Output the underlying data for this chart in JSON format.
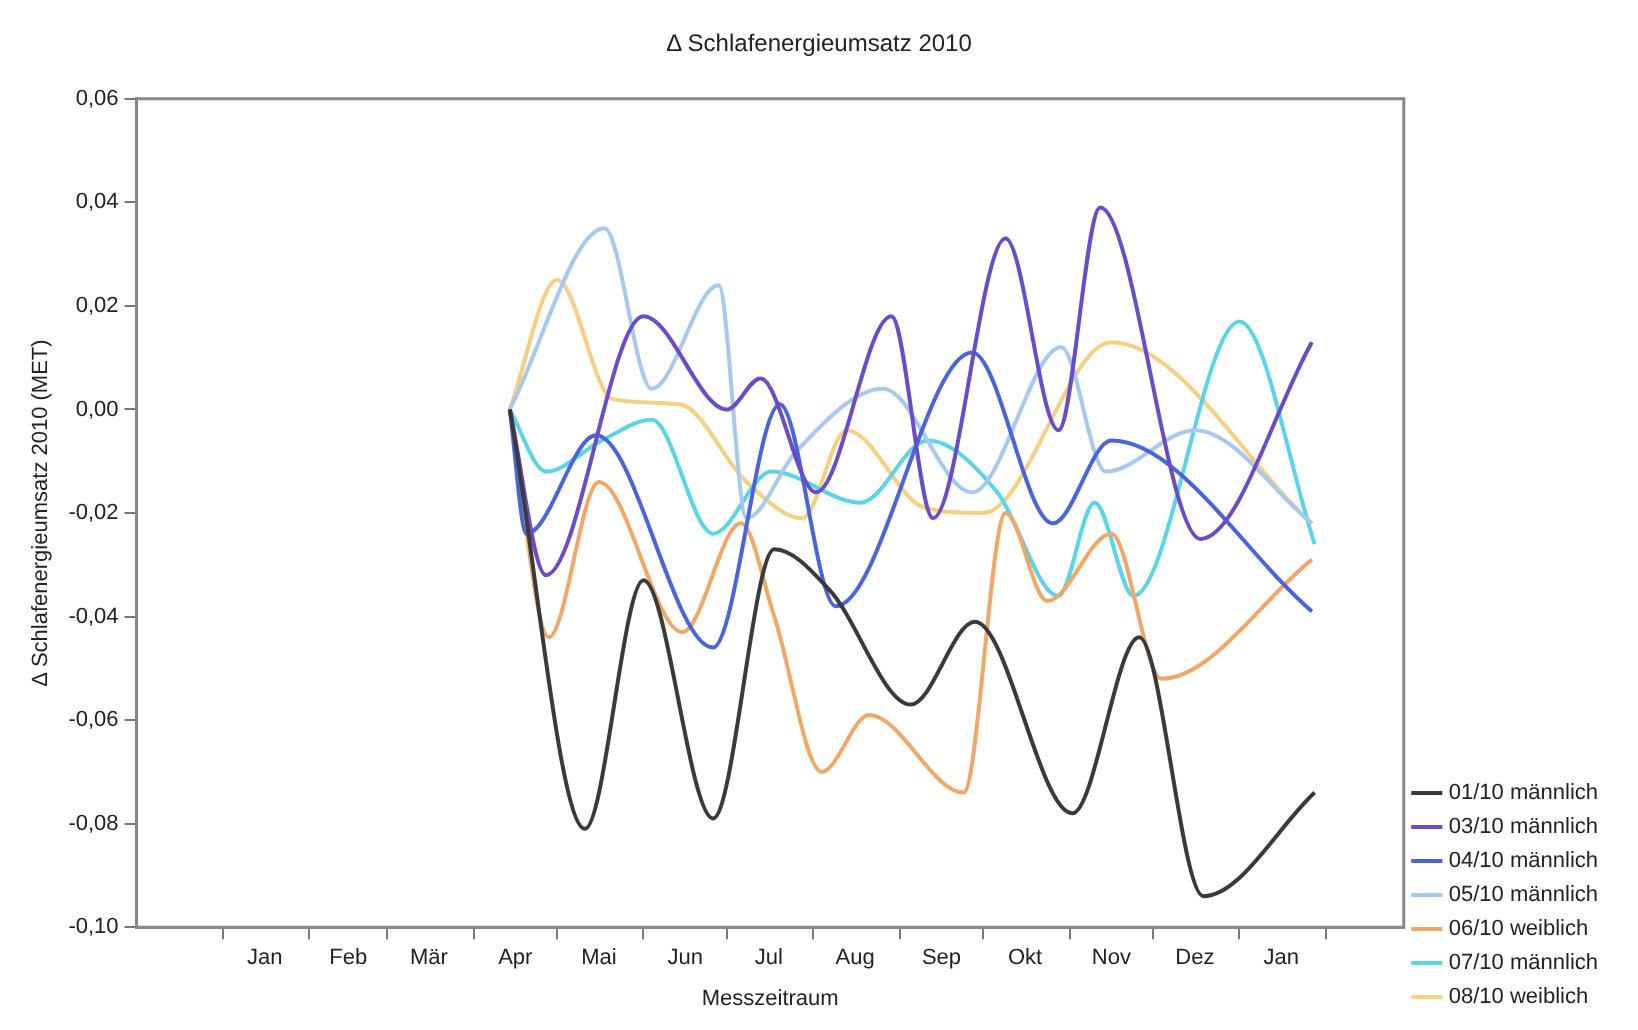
{
  "chart_data": {
    "type": "line",
    "title": "Δ Schlafenergieumsatz 2010",
    "xlabel": "Messzeitraum",
    "ylabel": "Δ Schlafenergieumsatz 2010 (MET)",
    "xlim": [
      "2009-12-01",
      "2011-03-01"
    ],
    "xticks": [
      {
        "value": "2010-01-01",
        "label": null
      },
      {
        "value": "2010-01-16",
        "label": "Jan"
      },
      {
        "value": "2010-02-01",
        "label": null
      },
      {
        "value": "2010-02-15",
        "label": "Feb"
      },
      {
        "value": "2010-03-01",
        "label": null
      },
      {
        "value": "2010-03-16",
        "label": "Mär"
      },
      {
        "value": "2010-04-01",
        "label": null
      },
      {
        "value": "2010-04-16",
        "label": "Apr"
      },
      {
        "value": "2010-05-01",
        "label": null
      },
      {
        "value": "2010-05-16",
        "label": "Mai"
      },
      {
        "value": "2010-06-01",
        "label": null
      },
      {
        "value": "2010-06-16",
        "label": "Jun"
      },
      {
        "value": "2010-07-01",
        "label": null
      },
      {
        "value": "2010-07-16",
        "label": "Jul"
      },
      {
        "value": "2010-08-01",
        "label": null
      },
      {
        "value": "2010-08-16",
        "label": "Aug"
      },
      {
        "value": "2010-09-01",
        "label": null
      },
      {
        "value": "2010-09-16",
        "label": "Sep"
      },
      {
        "value": "2010-10-01",
        "label": null
      },
      {
        "value": "2010-10-16",
        "label": "Okt"
      },
      {
        "value": "2010-11-01",
        "label": null
      },
      {
        "value": "2010-11-16",
        "label": "Nov"
      },
      {
        "value": "2010-12-01",
        "label": null
      },
      {
        "value": "2010-12-16",
        "label": "Dez"
      },
      {
        "value": "2011-01-01",
        "label": null
      },
      {
        "value": "2011-01-16",
        "label": "Jan"
      },
      {
        "value": "2011-02-01",
        "label": null
      }
    ],
    "ylim": [
      -0.1,
      0.06
    ],
    "yticks": [
      {
        "value": -0.1,
        "label": "-0,10"
      },
      {
        "value": -0.08,
        "label": "-0,08"
      },
      {
        "value": -0.06,
        "label": "-0,06"
      },
      {
        "value": -0.04,
        "label": "-0,04"
      },
      {
        "value": -0.02,
        "label": "-0,02"
      },
      {
        "value": 0,
        "label": "0,00"
      },
      {
        "value": 0.02,
        "label": "0,02"
      },
      {
        "value": 0.04,
        "label": "0,04"
      },
      {
        "value": 0.06,
        "label": "0,06"
      }
    ],
    "legend": "bottom right",
    "marker": "none",
    "line_style": "solid",
    "series": [
      {
        "name": "01/10 männlich",
        "color": "#3a3a3a",
        "x": [
          "2010-04-14",
          "2010-05-11",
          "2010-06-01",
          "2010-06-26",
          "2010-07-18",
          "2010-08-07",
          "2010-09-05",
          "2010-09-28",
          "2010-11-02",
          "2010-11-26",
          "2010-12-19",
          "2011-01-28"
        ],
        "values": [
          0,
          -0.081,
          -0.033,
          -0.079,
          -0.027,
          -0.035,
          -0.057,
          -0.041,
          -0.078,
          -0.044,
          -0.094,
          -0.074
        ]
      },
      {
        "name": "03/10 männlich",
        "color": "#6a4cc8",
        "x": [
          "2010-04-14",
          "2010-04-27",
          "2010-06-01",
          "2010-07-01",
          "2010-07-13",
          "2010-08-02",
          "2010-08-29",
          "2010-09-13",
          "2010-10-09",
          "2010-10-28",
          "2010-11-12",
          "2010-12-18",
          "2011-01-27"
        ],
        "values": [
          0,
          -0.032,
          0.018,
          0,
          0.006,
          -0.016,
          0.018,
          -0.021,
          0.033,
          -0.004,
          0.039,
          -0.025,
          0.013
        ]
      },
      {
        "name": "04/10 männlich",
        "color": "#4a64dc",
        "x": [
          "2010-04-14",
          "2010-04-20",
          "2010-05-15",
          "2010-06-26",
          "2010-07-20",
          "2010-08-09",
          "2010-09-27",
          "2010-10-26",
          "2010-11-16",
          "2011-01-27"
        ],
        "values": [
          0,
          -0.024,
          -0.005,
          -0.046,
          0.001,
          -0.038,
          0.011,
          -0.022,
          -0.006,
          -0.039
        ]
      },
      {
        "name": "05/10 männlich",
        "color": "#a8c8f0",
        "x": [
          "2010-04-14",
          "2010-05-18",
          "2010-06-04",
          "2010-06-28",
          "2010-07-08",
          "2010-07-26",
          "2010-08-26",
          "2010-09-27",
          "2010-10-29",
          "2010-11-14",
          "2010-12-16",
          "2011-01-27"
        ],
        "values": [
          0,
          0.035,
          0.004,
          0.024,
          -0.021,
          -0.008,
          0.004,
          -0.016,
          0.012,
          -0.012,
          -0.004,
          -0.022
        ]
      },
      {
        "name": "06/10 weiblich",
        "color": "#f0a868",
        "x": [
          "2010-04-14",
          "2010-04-28",
          "2010-05-16",
          "2010-06-15",
          "2010-07-06",
          "2010-07-18",
          "2010-08-04",
          "2010-08-21",
          "2010-09-24",
          "2010-10-09",
          "2010-10-24",
          "2010-11-16",
          "2010-12-04",
          "2011-01-27"
        ],
        "values": [
          0,
          -0.044,
          -0.014,
          -0.043,
          -0.022,
          -0.04,
          -0.07,
          -0.059,
          -0.074,
          -0.02,
          -0.037,
          -0.024,
          -0.052,
          -0.029
        ]
      },
      {
        "name": "07/10 männlich",
        "color": "#5ad4e6",
        "x": [
          "2010-04-14",
          "2010-04-27",
          "2010-05-17",
          "2010-06-04",
          "2010-06-26",
          "2010-07-17",
          "2010-08-18",
          "2010-09-11",
          "2010-10-06",
          "2010-10-28",
          "2010-11-10",
          "2010-11-24",
          "2011-01-01",
          "2011-01-28"
        ],
        "values": [
          0,
          -0.012,
          -0.006,
          -0.002,
          -0.024,
          -0.012,
          -0.018,
          -0.006,
          -0.016,
          -0.036,
          -0.018,
          -0.036,
          0.017,
          -0.026
        ]
      },
      {
        "name": "08/10 weiblich",
        "color": "#f5d080",
        "x": [
          "2010-04-14",
          "2010-05-01",
          "2010-05-21",
          "2010-06-14",
          "2010-07-08",
          "2010-07-28",
          "2010-08-13",
          "2010-09-10",
          "2010-10-01",
          "2010-11-16",
          "2011-01-27"
        ],
        "values": [
          0,
          0.025,
          0.002,
          0.001,
          -0.014,
          -0.021,
          -0.004,
          -0.019,
          -0.02,
          0.013,
          -0.022
        ]
      }
    ]
  }
}
